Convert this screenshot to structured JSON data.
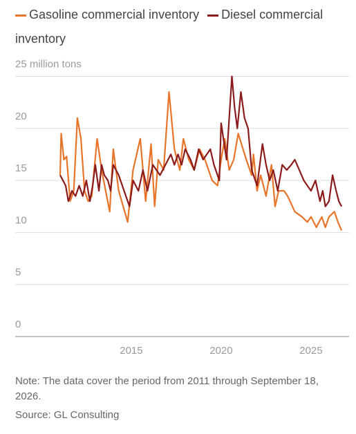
{
  "chart_data": {
    "type": "line",
    "yticks": [
      0,
      5,
      10,
      15,
      20,
      {
        "value": 25,
        "label": "25 million tons"
      }
    ],
    "ylim": [
      0,
      26
    ],
    "xlim": [
      2008.54,
      2027.12
    ],
    "xticks": [
      2015,
      2020,
      2025
    ],
    "grid": true,
    "note": "Note: The data cover the period from 2011 through September 18, 2026.",
    "source": "Source: GL Consulting",
    "series": [
      {
        "name": "Gasoline commercial inventory",
        "color": "#e8742a",
        "x": [
          2011.04,
          2011.1,
          2011.25,
          2011.4,
          2011.6,
          2011.8,
          2012.0,
          2012.2,
          2012.4,
          2012.6,
          2012.8,
          2013.1,
          2013.35,
          2013.8,
          2014.0,
          2014.3,
          2014.8,
          2015.1,
          2015.5,
          2015.8,
          2016.1,
          2016.3,
          2016.5,
          2016.8,
          2017.1,
          2017.4,
          2017.7,
          2017.9,
          2018.2,
          2018.5,
          2018.8,
          2019.1,
          2019.3,
          2019.5,
          2019.8,
          2020.0,
          2020.2,
          2020.45,
          2020.7,
          2020.95,
          2021.4,
          2021.6,
          2021.7,
          2021.8,
          2022.0,
          2022.2,
          2022.5,
          2022.8,
          2023.0,
          2023.2,
          2023.5,
          2023.7,
          2024.1,
          2024.5,
          2024.8,
          2025.0,
          2025.3,
          2025.6,
          2025.8,
          2026.0,
          2026.3,
          2026.5,
          2026.7
        ],
        "values": [
          15.5,
          19.5,
          17,
          17.3,
          13,
          14,
          21,
          19,
          14,
          13,
          13.5,
          19,
          16,
          12,
          18,
          14,
          11,
          16,
          19,
          13,
          18.5,
          12.5,
          17,
          16,
          23.5,
          18,
          16,
          19,
          17,
          16,
          18,
          17,
          16,
          15,
          14.5,
          17,
          19,
          16,
          17,
          19.5,
          17,
          16,
          15.5,
          17.5,
          14,
          15.5,
          13.5,
          16.5,
          12.5,
          14,
          14,
          13.5,
          12,
          11.5,
          11,
          11.5,
          10.5,
          11.5,
          10.5,
          11.5,
          12,
          11,
          10.2
        ]
      },
      {
        "name": "Diesel commercial inventory",
        "color": "#8b1a1a",
        "x": [
          2011.04,
          2011.2,
          2011.35,
          2011.5,
          2011.7,
          2011.9,
          2012.1,
          2012.3,
          2012.5,
          2012.7,
          2012.85,
          2013.0,
          2013.2,
          2013.35,
          2013.5,
          2013.7,
          2013.85,
          2014.0,
          2014.3,
          2014.6,
          2014.9,
          2015.1,
          2015.4,
          2015.65,
          2015.9,
          2016.2,
          2016.6,
          2016.9,
          2017.2,
          2017.4,
          2017.6,
          2017.8,
          2018.0,
          2018.3,
          2018.5,
          2018.75,
          2019.0,
          2019.2,
          2019.4,
          2019.6,
          2019.9,
          2020.0,
          2020.3,
          2020.6,
          2020.75,
          2020.9,
          2021.1,
          2021.3,
          2021.5,
          2021.7,
          2022.0,
          2022.3,
          2022.5,
          2022.7,
          2022.9,
          2023.15,
          2023.4,
          2023.65,
          2023.9,
          2024.1,
          2024.35,
          2024.6,
          2025.0,
          2025.25,
          2025.5,
          2025.65,
          2025.8,
          2026.0,
          2026.2,
          2026.4,
          2026.55,
          2026.7
        ],
        "values": [
          15.5,
          15,
          14.5,
          13,
          14,
          13.5,
          14.5,
          13.5,
          15,
          13,
          14.5,
          16.5,
          14,
          16.5,
          15.5,
          15,
          14,
          16.5,
          15.5,
          14,
          12.5,
          15,
          14,
          16,
          14,
          16.5,
          15.5,
          16.5,
          17.5,
          16.5,
          17.5,
          16.5,
          18,
          17,
          16,
          18,
          17,
          17.5,
          18,
          16.5,
          15,
          20.5,
          17,
          25,
          22,
          20,
          23.5,
          21,
          20,
          16,
          14.5,
          18.5,
          16.5,
          15,
          16,
          14,
          16.5,
          16,
          16.5,
          17,
          16,
          15,
          14,
          15,
          13,
          14,
          12.5,
          13,
          15.5,
          14,
          13,
          12.5
        ]
      }
    ]
  }
}
